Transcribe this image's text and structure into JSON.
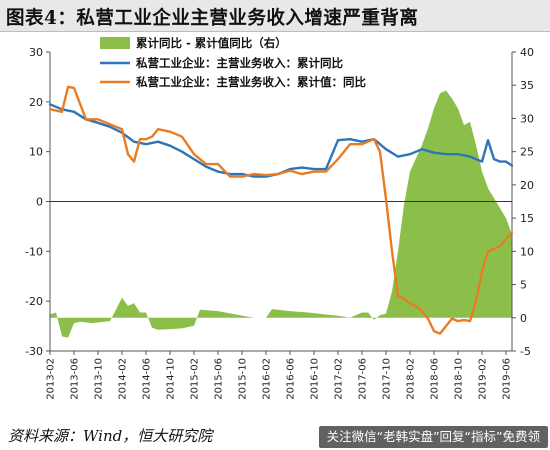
{
  "title": "图表4：私营工业企业主营业务收入增速严重背离",
  "source": "资料来源：Wind，恒大研究院",
  "watermark": "关注微信“老韩实盘”回复“指标”免费领",
  "colors": {
    "area": "#8cbf4a",
    "blue": "#2e75b6",
    "orange": "#e97c23"
  },
  "chart_data": {
    "type": "line",
    "y_left": {
      "min": -30,
      "max": 30,
      "ticks": [
        -30,
        -20,
        -10,
        0,
        10,
        20,
        30
      ]
    },
    "y_right": {
      "min": -5,
      "max": 40,
      "ticks": [
        -5,
        0,
        5,
        10,
        15,
        20,
        25,
        30,
        35,
        40
      ]
    },
    "x_ticks": [
      "2013-02",
      "2013-06",
      "2013-10",
      "2014-02",
      "2014-06",
      "2014-10",
      "2015-02",
      "2015-06",
      "2015-10",
      "2016-02",
      "2016-06",
      "2016-10",
      "2017-02",
      "2017-06",
      "2017-10",
      "2018-02",
      "2018-06",
      "2018-10",
      "2019-02",
      "2019-06"
    ],
    "x_range": [
      "2013-02",
      "2019-07"
    ],
    "legend": [
      "累计同比 - 累计值同比（右）",
      "私营工业企业：主营业务收入：累计同比",
      "私营工业企业：主营业务收入：累计值：同比"
    ],
    "series": [
      {
        "name": "累计同比 - 累计值同比（右）",
        "axis": "right",
        "kind": "area",
        "x": [
          "2013-02",
          "2013-03",
          "2013-04",
          "2013-05",
          "2013-06",
          "2013-07",
          "2013-09",
          "2013-12",
          "2014-02",
          "2014-03",
          "2014-04",
          "2014-05",
          "2014-06",
          "2014-07",
          "2014-08",
          "2014-10",
          "2014-12",
          "2015-02",
          "2015-03",
          "2015-06",
          "2015-09",
          "2015-12",
          "2016-02",
          "2016-03",
          "2016-06",
          "2016-09",
          "2016-12",
          "2017-02",
          "2017-04",
          "2017-06",
          "2017-07",
          "2017-08",
          "2017-09",
          "2017-10",
          "2017-11",
          "2017-12",
          "2018-01",
          "2018-02",
          "2018-03",
          "2018-04",
          "2018-05",
          "2018-06",
          "2018-07",
          "2018-08",
          "2018-09",
          "2018-10",
          "2018-11",
          "2018-12",
          "2019-01",
          "2019-02",
          "2019-03",
          "2019-04",
          "2019-05",
          "2019-06",
          "2019-07"
        ],
        "values": [
          0.5,
          0.8,
          -2.8,
          -3.0,
          -0.8,
          -0.6,
          -0.8,
          -0.5,
          3.0,
          1.8,
          2.2,
          0.8,
          0.8,
          -1.5,
          -1.8,
          -1.7,
          -1.6,
          -1.2,
          1.2,
          1.0,
          0.5,
          0.0,
          0.0,
          1.3,
          1.0,
          0.8,
          0.5,
          0.3,
          0.0,
          0.8,
          0.8,
          -0.3,
          0.4,
          0.6,
          4.0,
          10.0,
          17.0,
          22.0,
          24.0,
          26.0,
          28.5,
          31.5,
          33.8,
          34.2,
          33.0,
          31.5,
          29.0,
          29.5,
          26.0,
          22.0,
          19.5,
          18.0,
          16.5,
          15.0,
          12.5
        ]
      },
      {
        "name": "私营工业企业：主营业务收入：累计同比",
        "axis": "left",
        "kind": "line",
        "x": [
          "2013-02",
          "2013-04",
          "2013-06",
          "2013-08",
          "2013-10",
          "2013-12",
          "2014-02",
          "2014-04",
          "2014-06",
          "2014-08",
          "2014-10",
          "2014-12",
          "2015-02",
          "2015-04",
          "2015-06",
          "2015-08",
          "2015-10",
          "2015-12",
          "2016-02",
          "2016-04",
          "2016-06",
          "2016-08",
          "2016-10",
          "2016-12",
          "2017-02",
          "2017-04",
          "2017-06",
          "2017-08",
          "2017-10",
          "2017-12",
          "2018-02",
          "2018-04",
          "2018-06",
          "2018-08",
          "2018-10",
          "2018-12",
          "2019-01",
          "2019-02",
          "2019-03",
          "2019-04",
          "2019-05",
          "2019-06",
          "2019-07"
        ],
        "values": [
          19.5,
          18.5,
          18.0,
          16.5,
          15.8,
          15.0,
          13.8,
          12.0,
          11.5,
          12.0,
          11.2,
          10.0,
          8.5,
          7.0,
          6.0,
          5.5,
          5.5,
          5.0,
          5.0,
          5.5,
          6.5,
          6.8,
          6.5,
          6.5,
          12.3,
          12.5,
          12.0,
          12.5,
          10.5,
          9.0,
          9.5,
          10.5,
          9.8,
          9.5,
          9.5,
          9.0,
          8.5,
          8.0,
          12.3,
          8.5,
          8.0,
          8.0,
          7.2
        ]
      },
      {
        "name": "私营工业企业：主营业务收入：累计值：同比",
        "axis": "left",
        "kind": "line",
        "x": [
          "2013-02",
          "2013-04",
          "2013-05",
          "2013-06",
          "2013-08",
          "2013-10",
          "2013-12",
          "2014-02",
          "2014-03",
          "2014-04",
          "2014-05",
          "2014-06",
          "2014-07",
          "2014-08",
          "2014-10",
          "2014-12",
          "2015-02",
          "2015-04",
          "2015-06",
          "2015-08",
          "2015-10",
          "2015-12",
          "2016-02",
          "2016-04",
          "2016-06",
          "2016-08",
          "2016-10",
          "2016-12",
          "2017-02",
          "2017-04",
          "2017-06",
          "2017-08",
          "2017-09",
          "2017-10",
          "2017-11",
          "2017-12",
          "2018-01",
          "2018-02",
          "2018-03",
          "2018-04",
          "2018-05",
          "2018-06",
          "2018-07",
          "2018-08",
          "2018-09",
          "2018-10",
          "2018-11",
          "2018-12",
          "2019-01",
          "2019-02",
          "2019-03",
          "2019-04",
          "2019-05",
          "2019-06",
          "2019-07"
        ],
        "values": [
          18.5,
          18.0,
          23.0,
          22.8,
          16.5,
          16.5,
          15.5,
          14.5,
          9.5,
          8.0,
          12.5,
          12.5,
          13.0,
          14.5,
          14.0,
          13.0,
          9.5,
          7.5,
          7.5,
          5.0,
          5.0,
          5.5,
          5.3,
          5.5,
          6.2,
          5.5,
          6.0,
          6.0,
          8.5,
          11.5,
          11.5,
          12.5,
          10.0,
          0.5,
          -10.0,
          -19.0,
          -19.5,
          -20.5,
          -21.0,
          -22.0,
          -23.5,
          -26.0,
          -26.5,
          -25.0,
          -23.5,
          -24.0,
          -23.8,
          -24.0,
          -20.0,
          -14.0,
          -10.0,
          -9.5,
          -9.0,
          -7.5,
          -6.2
        ]
      }
    ]
  }
}
